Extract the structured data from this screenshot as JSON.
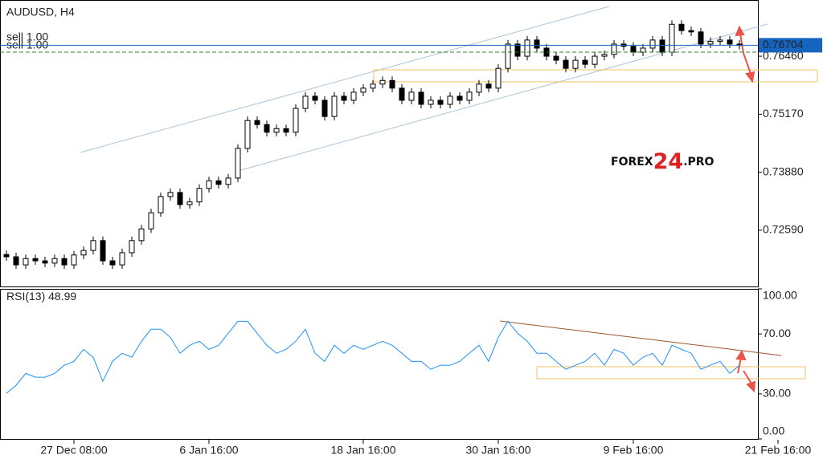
{
  "chart_data": [
    {
      "type": "candlestick",
      "title": "AUDUSD, H4",
      "categories": [
        null,
        null,
        null,
        null,
        null,
        null,
        null,
        "27 Dec 08:00",
        null,
        null,
        null,
        null,
        null,
        null,
        null,
        null,
        null,
        null,
        null,
        null,
        null,
        "6 Jan 16:00",
        null,
        null,
        null,
        null,
        null,
        null,
        null,
        null,
        null,
        null,
        null,
        null,
        null,
        null,
        null,
        "18 Jan 16:00",
        null,
        null,
        null,
        null,
        null,
        null,
        null,
        null,
        null,
        null,
        null,
        null,
        null,
        "30 Jan 16:00",
        null,
        null,
        null,
        null,
        null,
        null,
        null,
        null,
        null,
        null,
        null,
        null,
        null,
        "9 Feb 16:00",
        null,
        null,
        null,
        null,
        null,
        null,
        null,
        null,
        null,
        null,
        null,
        null,
        null,
        null,
        "21 Feb 16:00"
      ],
      "open": [
        0.7205,
        0.72,
        0.7182,
        0.7196,
        0.7191,
        0.7186,
        0.7196,
        0.7182,
        0.7204,
        0.7214,
        0.7236,
        0.7191,
        0.7182,
        0.7209,
        0.7236,
        0.7262,
        0.7298,
        0.7334,
        0.7343,
        0.7316,
        0.7322,
        0.7352,
        0.7369,
        0.7361,
        0.7375,
        0.7441,
        0.7503,
        0.7494,
        0.7477,
        0.7485,
        0.7477,
        0.753,
        0.7557,
        0.7548,
        0.7512,
        0.7557,
        0.7548,
        0.7566,
        0.7575,
        0.7584,
        0.7592,
        0.7575,
        0.7548,
        0.7566,
        0.7539,
        0.7548,
        0.7539,
        0.7557,
        0.7548,
        0.7566,
        0.7584,
        0.7575,
        0.7619,
        0.7673,
        0.7646,
        0.7682,
        0.7664,
        0.7646,
        0.7637,
        0.7619,
        0.7637,
        0.7628,
        0.7646,
        0.765,
        0.7673,
        0.7668,
        0.7655,
        0.7664,
        0.7682,
        0.7655,
        0.7717,
        0.7703,
        0.77,
        0.7673,
        0.7679,
        0.7682,
        0.7673,
        null,
        null,
        null,
        null
      ],
      "high": [
        0.7214,
        0.7209,
        0.7205,
        0.7205,
        0.72,
        0.7205,
        0.7205,
        0.7213,
        0.7223,
        0.7245,
        0.7245,
        0.72,
        0.7218,
        0.7245,
        0.7271,
        0.7307,
        0.7343,
        0.7352,
        0.7352,
        0.7331,
        0.7361,
        0.7378,
        0.7378,
        0.7384,
        0.745,
        0.7512,
        0.7512,
        0.7503,
        0.7494,
        0.7494,
        0.7539,
        0.7566,
        0.7566,
        0.7557,
        0.7566,
        0.7566,
        0.7575,
        0.7584,
        0.7593,
        0.7601,
        0.7601,
        0.7584,
        0.7575,
        0.7575,
        0.7557,
        0.7557,
        0.7566,
        0.7566,
        0.7575,
        0.7593,
        0.7593,
        0.7628,
        0.7682,
        0.7682,
        0.7691,
        0.7691,
        0.7673,
        0.7655,
        0.7646,
        0.7646,
        0.7646,
        0.7655,
        0.7659,
        0.7682,
        0.7682,
        0.7677,
        0.7673,
        0.7691,
        0.7691,
        0.7726,
        0.7726,
        0.7712,
        0.7709,
        0.7688,
        0.7691,
        0.7691,
        0.7682,
        null,
        null,
        null,
        null
      ],
      "low": [
        0.7191,
        0.7173,
        0.7173,
        0.7182,
        0.7177,
        0.7177,
        0.7173,
        0.7173,
        0.7195,
        0.7205,
        0.7182,
        0.7173,
        0.7173,
        0.72,
        0.7227,
        0.7253,
        0.7289,
        0.7325,
        0.7307,
        0.7307,
        0.7313,
        0.7343,
        0.7352,
        0.7352,
        0.7366,
        0.7432,
        0.7485,
        0.7468,
        0.7468,
        0.7468,
        0.7468,
        0.7521,
        0.7539,
        0.7503,
        0.7503,
        0.7539,
        0.7539,
        0.7557,
        0.7566,
        0.7575,
        0.7566,
        0.7539,
        0.7539,
        0.753,
        0.753,
        0.753,
        0.753,
        0.7539,
        0.7539,
        0.7557,
        0.7566,
        0.7566,
        0.761,
        0.7637,
        0.7637,
        0.7655,
        0.7637,
        0.7628,
        0.761,
        0.761,
        0.7619,
        0.7619,
        0.7637,
        0.7641,
        0.7659,
        0.7646,
        0.7646,
        0.7655,
        0.7646,
        0.7646,
        0.7694,
        0.7691,
        0.7664,
        0.7664,
        0.767,
        0.7664,
        0.7661,
        null,
        null,
        null,
        null
      ],
      "close": [
        0.72,
        0.7182,
        0.7196,
        0.7191,
        0.7186,
        0.7196,
        0.7182,
        0.7204,
        0.7214,
        0.7236,
        0.7191,
        0.7182,
        0.7209,
        0.7236,
        0.7262,
        0.7298,
        0.7334,
        0.7343,
        0.7316,
        0.7322,
        0.7352,
        0.7369,
        0.7361,
        0.7375,
        0.7441,
        0.7503,
        0.7494,
        0.7477,
        0.7485,
        0.7477,
        0.753,
        0.7557,
        0.7548,
        0.7512,
        0.7557,
        0.7548,
        0.7566,
        0.7575,
        0.7584,
        0.7592,
        0.7575,
        0.7548,
        0.7566,
        0.7539,
        0.7548,
        0.7539,
        0.7557,
        0.7548,
        0.7566,
        0.7584,
        0.7575,
        0.7619,
        0.7673,
        0.7646,
        0.7682,
        0.7664,
        0.7646,
        0.7637,
        0.7619,
        0.7637,
        0.7628,
        0.7646,
        0.765,
        0.7673,
        0.7668,
        0.7655,
        0.7664,
        0.7682,
        0.7655,
        0.7717,
        0.7703,
        0.77,
        0.7673,
        0.7679,
        0.7682,
        0.7673,
        0.767,
        null,
        null,
        null,
        null
      ],
      "color_up": "#ffffff",
      "color_down": "#000000",
      "ylim": [
        0.7134,
        0.7771
      ],
      "yticks": [
        {
          "value": 0.7259,
          "label": "0.72590"
        },
        {
          "value": 0.7388,
          "label": "0.73880"
        },
        {
          "value": 0.7517,
          "label": "0.75170"
        },
        {
          "value": 0.7646,
          "label": "0.76460"
        }
      ],
      "current_price": 0.76704,
      "current_price_color": "#1565c0",
      "orders": [
        {
          "label": "sell 1.00",
          "price": 0.7655
        },
        {
          "label": "sell 1.00",
          "price": 0.7655
        }
      ],
      "order_color": "#2e7d32",
      "watermark": [
        "FOREX",
        "24",
        ".PRO"
      ]
    },
    {
      "type": "line",
      "title": "RSI(13)",
      "color": "#1e90ff",
      "values": [
        30.4,
        35.7,
        43.7,
        41.1,
        41.1,
        43.7,
        49.1,
        51.7,
        59.7,
        54.4,
        38.4,
        51.7,
        57.1,
        54.4,
        65.1,
        73.1,
        73.1,
        67.7,
        57.1,
        62.4,
        65.1,
        59.7,
        62.4,
        70.4,
        78.4,
        78.4,
        70.4,
        62.4,
        57.1,
        59.7,
        65.1,
        73.1,
        57.1,
        51.7,
        62.4,
        57.1,
        62.4,
        59.7,
        62.4,
        65.1,
        62.4,
        57.1,
        51.7,
        51.7,
        46.4,
        49.1,
        49.1,
        51.7,
        57.1,
        62.4,
        51.7,
        67.7,
        78.4,
        70.4,
        65.1,
        57.1,
        57.1,
        51.7,
        46.4,
        49.1,
        51.7,
        57.1,
        49.1,
        59.7,
        57.1,
        49.1,
        54.4,
        57.1,
        49.1,
        62.4,
        59.7,
        57.1,
        46.4,
        49.1,
        51.7,
        43.7,
        48.99,
        null,
        null,
        null,
        null
      ],
      "ylim": [
        0,
        100
      ],
      "yticks": [
        {
          "value": 0,
          "label": "0.00"
        },
        {
          "value": 30,
          "label": "30.00"
        },
        {
          "value": 70,
          "label": "70.00"
        },
        {
          "value": 100,
          "label": "100.00"
        }
      ]
    }
  ]
}
